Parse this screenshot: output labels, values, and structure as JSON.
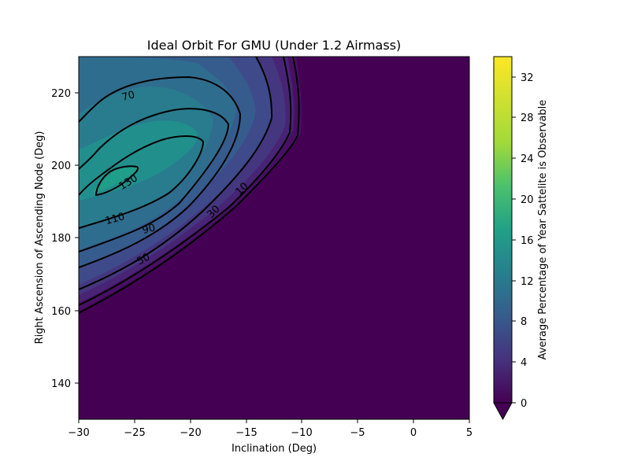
{
  "chart_data": {
    "type": "heatmap",
    "title": "Ideal Orbit For GMU (Under 1.2 Airmass)",
    "xlabel": "Inclination (Deg)",
    "ylabel": "Right Ascension of Ascending Node (Deg)",
    "xlim": [
      -30,
      5
    ],
    "ylim": [
      130,
      230
    ],
    "x_ticks": [
      "−30",
      "−25",
      "−20",
      "−15",
      "−10",
      "−5",
      "0",
      "5"
    ],
    "x_tick_values": [
      -30,
      -25,
      -20,
      -15,
      -10,
      -5,
      0,
      5
    ],
    "y_ticks": [
      "140",
      "160",
      "180",
      "200",
      "220"
    ],
    "y_tick_values": [
      140,
      160,
      180,
      200,
      220
    ],
    "colorbar": {
      "label": "Average Percentage of Year Sattelite is Observable",
      "range": [
        0,
        34
      ],
      "ticks": [
        "0",
        "4",
        "8",
        "12",
        "16",
        "20",
        "24",
        "28",
        "32"
      ],
      "tick_values": [
        0,
        4,
        8,
        12,
        16,
        20,
        24,
        28,
        32
      ],
      "colormap": "viridis",
      "extend": "min"
    },
    "contour_lines": [
      {
        "level_label": "10",
        "level": 10
      },
      {
        "level_label": "30",
        "level": 30
      },
      {
        "level_label": "50",
        "level": 50
      },
      {
        "level_label": "70",
        "level": 70
      },
      {
        "level_label": "90",
        "level": 90
      },
      {
        "level_label": "110",
        "level": 110
      },
      {
        "level_label": "130",
        "level": 130
      }
    ],
    "peak": {
      "x": -30,
      "y": 205,
      "value": 17
    },
    "grid": false
  }
}
